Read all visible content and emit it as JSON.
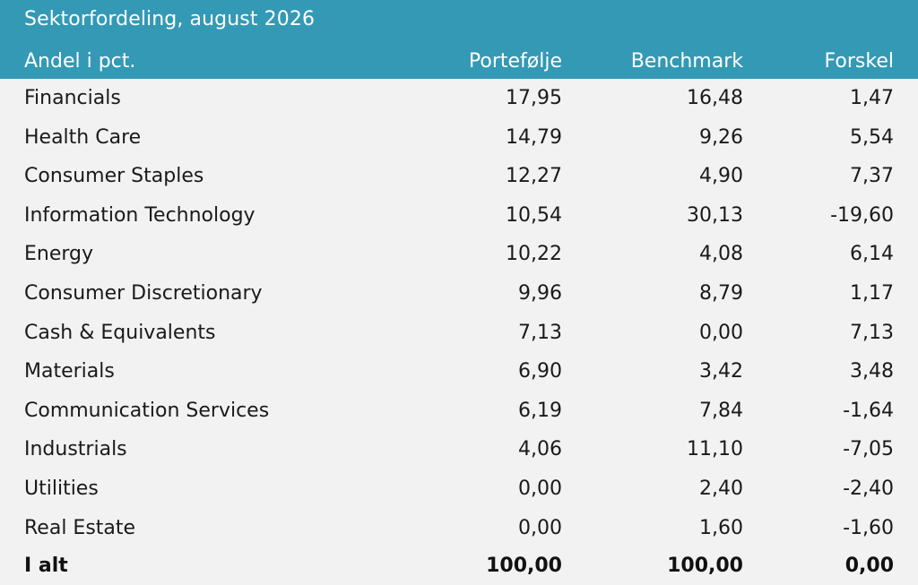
{
  "title": "Sektorfordeling, august 2026",
  "columns": [
    "Andel i pct.",
    "Portefølje",
    "Benchmark",
    "Forskel"
  ],
  "rows": [
    [
      "Financials",
      "17,95",
      "16,48",
      "1,47"
    ],
    [
      "Health Care",
      "14,79",
      "9,26",
      "5,54"
    ],
    [
      "Consumer Staples",
      "12,27",
      "4,90",
      "7,37"
    ],
    [
      "Information Technology",
      "10,54",
      "30,13",
      "-19,60"
    ],
    [
      "Energy",
      "10,22",
      "4,08",
      "6,14"
    ],
    [
      "Consumer Discretionary",
      "9,96",
      "8,79",
      "1,17"
    ],
    [
      "Cash & Equivalents",
      "7,13",
      "0,00",
      "7,13"
    ],
    [
      "Materials",
      "6,90",
      "3,42",
      "3,48"
    ],
    [
      "Communication Services",
      "6,19",
      "7,84",
      "-1,64"
    ],
    [
      "Industrials",
      "4,06",
      "11,10",
      "-7,05"
    ],
    [
      "Utilities",
      "0,00",
      "2,40",
      "-2,40"
    ],
    [
      "Real Estate",
      "0,00",
      "1,60",
      "-1,60"
    ]
  ],
  "total": [
    "I alt",
    "100,00",
    "100,00",
    "0,00"
  ],
  "colors": {
    "header_bg": "#3399b5",
    "header_text": "#ffffff",
    "body_bg": "#f2f2f2",
    "body_text": "#1a1a1a"
  }
}
